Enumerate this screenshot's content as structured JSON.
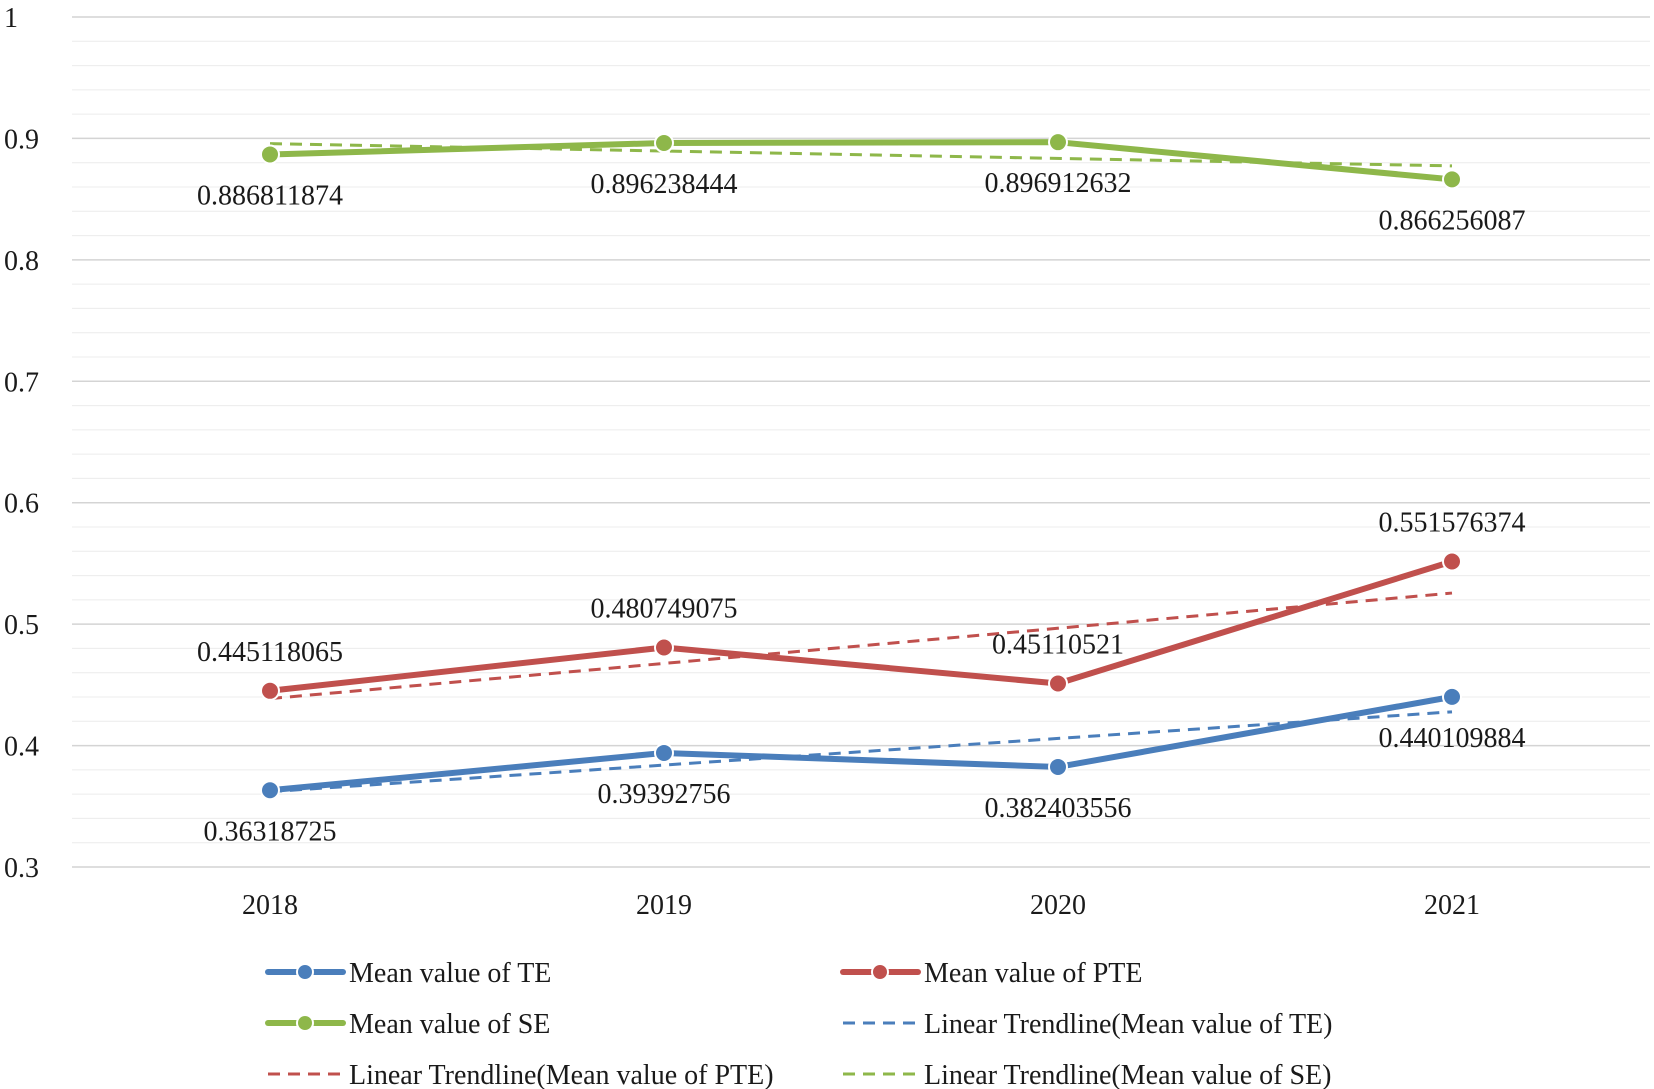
{
  "chart_data": {
    "type": "line",
    "title": "",
    "xlabel": "",
    "ylabel": "",
    "categories": [
      "2018",
      "2019",
      "2020",
      "2021"
    ],
    "ylim": [
      0.3,
      1
    ],
    "yticks": [
      "0.3",
      "0.4",
      "0.5",
      "0.6",
      "0.7",
      "0.8",
      "0.9",
      "1"
    ],
    "ytick_values": [
      0.3,
      0.4,
      0.5,
      0.6,
      0.7,
      0.8,
      0.9,
      1.0
    ],
    "grid": true,
    "legend_position": "bottom",
    "series": [
      {
        "name": "Mean value of TE",
        "color": "#4a7ebb",
        "values": [
          0.36318725,
          0.39392756,
          0.382403556,
          0.440109884
        ],
        "labels": [
          "0.36318725",
          "0.39392756",
          "0.382403556",
          "0.440109884"
        ],
        "label_side": [
          "below",
          "below",
          "below",
          "below"
        ]
      },
      {
        "name": "Mean value of PTE",
        "color": "#c0504d",
        "values": [
          0.445118065,
          0.480749075,
          0.45110521,
          0.551576374
        ],
        "labels": [
          "0.445118065",
          "0.480749075",
          "0.45110521",
          "0.551576374"
        ],
        "label_side": [
          "above",
          "above",
          "above",
          "above"
        ]
      },
      {
        "name": "Mean value of SE",
        "color": "#8eb74a",
        "values": [
          0.886811874,
          0.896238444,
          0.896912632,
          0.866256087
        ],
        "labels": [
          "0.886811874",
          "0.896238444",
          "0.896912632",
          "0.866256087"
        ],
        "label_side": [
          "below",
          "below",
          "below",
          "below"
        ]
      }
    ],
    "trendlines": [
      {
        "name": "Linear Trendline(Mean value of TE)",
        "of": "Mean value of TE",
        "color": "#4a7ebb"
      },
      {
        "name": "Linear Trendline(Mean value of PTE)",
        "of": "Mean value of PTE",
        "color": "#c0504d"
      },
      {
        "name": "Linear Trendline(Mean value of SE)",
        "of": "Mean value of SE",
        "color": "#8eb74a"
      }
    ],
    "legend": [
      {
        "label": "Mean value of TE",
        "style": "line-marker",
        "color": "#4a7ebb"
      },
      {
        "label": "Mean value of PTE",
        "style": "line-marker",
        "color": "#c0504d"
      },
      {
        "label": "Mean value of SE",
        "style": "line-marker",
        "color": "#8eb74a"
      },
      {
        "label": "Linear Trendline(Mean value of TE)",
        "style": "dashed",
        "color": "#4a7ebb"
      },
      {
        "label": "Linear Trendline(Mean value of PTE)",
        "style": "dashed",
        "color": "#c0504d"
      },
      {
        "label": "Linear Trendline(Mean value of SE)",
        "style": "dashed",
        "color": "#8eb74a"
      }
    ]
  }
}
